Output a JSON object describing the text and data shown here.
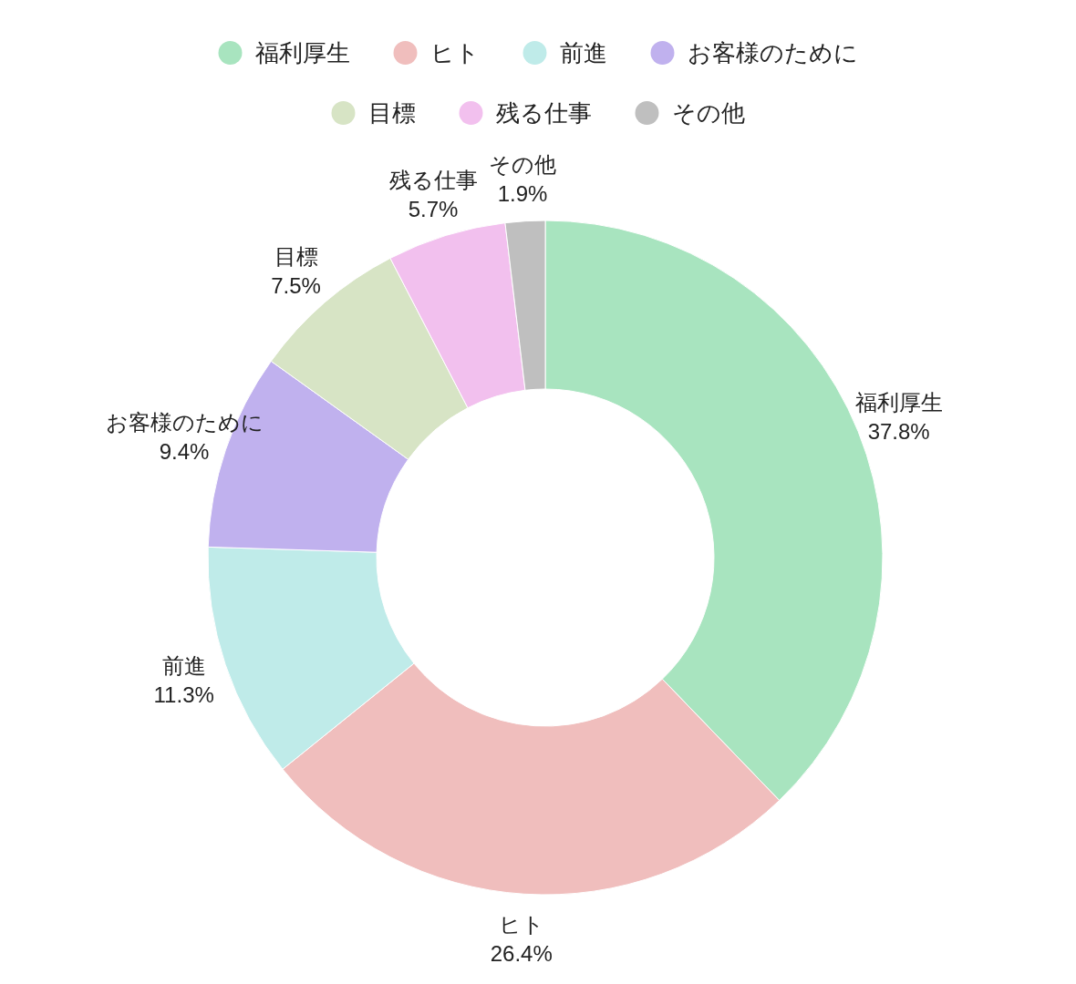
{
  "chart_data": {
    "type": "donut",
    "categories": [
      "福利厚生",
      "ヒト",
      "前進",
      "お客様のために",
      "目標",
      "残る仕事",
      "その他"
    ],
    "values": [
      37.8,
      26.4,
      11.3,
      9.4,
      7.5,
      5.7,
      1.9
    ],
    "colors": [
      "#a8e4bf",
      "#f0bebd",
      "#bfebe9",
      "#c0b1ee",
      "#d7e4c5",
      "#f2c0ee",
      "#bfbfbf"
    ],
    "value_labels": [
      "37.8%",
      "26.4%",
      "11.3%",
      "9.4%",
      "7.5%",
      "5.7%",
      "1.9%"
    ],
    "legend": "top"
  }
}
